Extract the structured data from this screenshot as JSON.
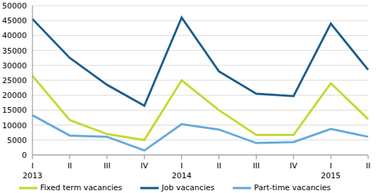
{
  "chart_data": {
    "type": "line",
    "categories": [
      "I",
      "II",
      "III",
      "IV",
      "I",
      "II",
      "III",
      "IV",
      "I",
      "II"
    ],
    "year_labels": [
      "2013",
      null,
      null,
      null,
      "2014",
      null,
      null,
      null,
      "2015",
      null
    ],
    "series": [
      {
        "name": "Job vacancies",
        "color": "#1b5e8c",
        "values": [
          45500,
          32500,
          23500,
          16500,
          46000,
          28000,
          20500,
          19700,
          44000,
          28500
        ]
      },
      {
        "name": "Fixed term vacancies",
        "color": "#c3d82e",
        "values": [
          26500,
          11700,
          7000,
          5000,
          25000,
          15000,
          6700,
          6700,
          24000,
          12000
        ]
      },
      {
        "name": "Part-time vacancies",
        "color": "#63a9dc",
        "values": [
          13300,
          6500,
          6100,
          1500,
          10300,
          8500,
          4000,
          4300,
          8700,
          6100
        ]
      }
    ],
    "ylim": [
      0,
      50000
    ],
    "yticks": [
      0,
      5000,
      10000,
      15000,
      20000,
      25000,
      30000,
      35000,
      40000,
      45000,
      50000
    ],
    "grid": true,
    "legend": "bottom"
  }
}
